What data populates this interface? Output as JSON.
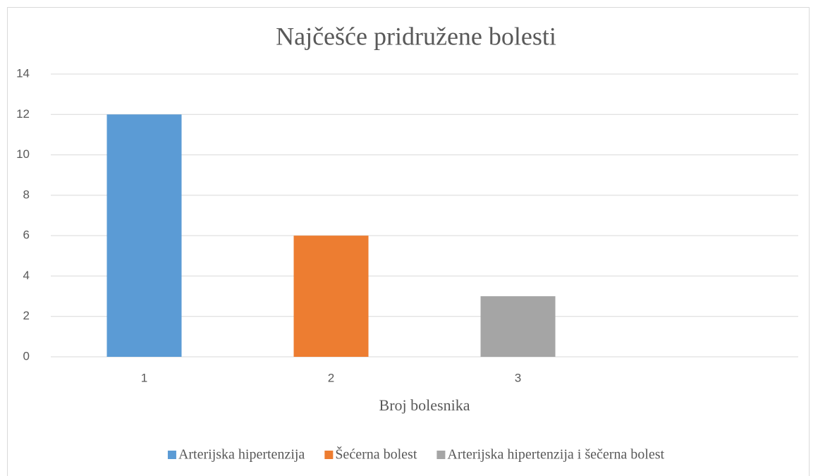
{
  "chart_data": {
    "type": "bar",
    "title": "Najčešće pridružene bolesti",
    "x_label": "Broj bolesnika",
    "categories": [
      "1",
      "2",
      "3",
      null
    ],
    "series": [
      {
        "name": "Arterijska hipertenzija",
        "color": "#5b9bd5",
        "values": [
          12,
          null,
          null,
          null
        ]
      },
      {
        "name": "Šećerna bolest",
        "color": "#ed7d31",
        "values": [
          null,
          6,
          null,
          null
        ]
      },
      {
        "name": "Arterijska hipertenzija i šečerna bolest",
        "color": "#a5a5a5",
        "values": [
          null,
          null,
          3,
          null
        ]
      }
    ],
    "ylim": [
      0,
      14
    ],
    "yticks": [
      0,
      2,
      4,
      6,
      8,
      10,
      12,
      14
    ],
    "grid": true,
    "legend": "bottom"
  }
}
